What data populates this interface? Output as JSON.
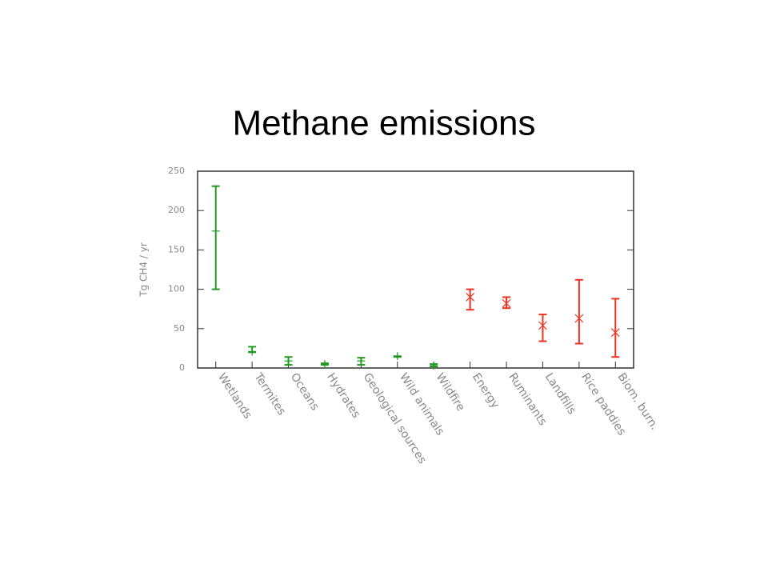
{
  "chart_data": {
    "type": "errorbar",
    "title": "Methane emissions",
    "y_label": "Tg CH4 / yr",
    "categories": [
      "Wetlands",
      "Termites",
      "Oceans",
      "Hydrates",
      "Geological sources",
      "Wild animals",
      "Wildfire",
      "Energy",
      "Ruminants",
      "Landfills",
      "Rice paddies",
      "Biom. burn."
    ],
    "values": [
      174,
      21,
      9,
      5,
      9,
      15,
      3,
      90,
      82,
      54,
      63,
      45
    ],
    "low": [
      100,
      20,
      4,
      4,
      4,
      14,
      2,
      74,
      76,
      34,
      31,
      14
    ],
    "high": [
      231,
      27,
      14,
      6,
      13,
      15,
      5,
      100,
      90,
      68,
      112,
      88
    ],
    "colors": [
      "#229922",
      "#229922",
      "#229922",
      "#229922",
      "#229922",
      "#229922",
      "#229922",
      "#ee3322",
      "#ee3322",
      "#ee3322",
      "#ee3322",
      "#ee3322"
    ],
    "markers": [
      "plus",
      "plus",
      "plus",
      "plus",
      "plus",
      "plus",
      "plus",
      "cross",
      "cross",
      "cross",
      "cross",
      "cross"
    ],
    "ylim": [
      0,
      250
    ],
    "yticks": [
      0,
      50,
      100,
      150,
      200,
      250
    ]
  }
}
